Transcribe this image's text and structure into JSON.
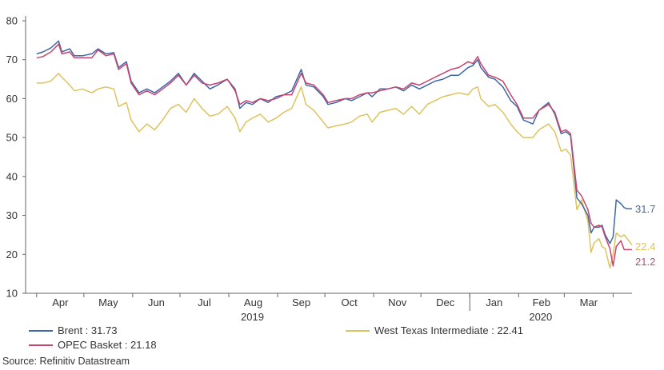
{
  "chart_data": {
    "type": "line",
    "title": "",
    "xlabel": "",
    "ylabel": "",
    "ylim": [
      10,
      80
    ],
    "yticks": [
      10,
      20,
      30,
      40,
      50,
      60,
      70,
      80
    ],
    "grid": false,
    "month_labels": [
      "Apr",
      "May",
      "Jun",
      "Jul",
      "Aug",
      "Sep",
      "Oct",
      "Nov",
      "Dec",
      "Jan",
      "Feb",
      "Mar"
    ],
    "year_labels": [
      "2019",
      "2020"
    ],
    "source": "Source: Refinitiv Datastream",
    "series": [
      {
        "name": "Brent",
        "legend": "Brent : 31.73",
        "end_label": "31.7",
        "color": "#3f68a6",
        "points": [
          [
            "2019-04-01",
            71.5
          ],
          [
            "2019-04-05",
            72.0
          ],
          [
            "2019-04-10",
            73.0
          ],
          [
            "2019-04-15",
            74.8
          ],
          [
            "2019-04-17",
            72.0
          ],
          [
            "2019-04-22",
            72.8
          ],
          [
            "2019-04-25",
            71.0
          ],
          [
            "2019-04-30",
            71.0
          ],
          [
            "2019-05-06",
            71.5
          ],
          [
            "2019-05-10",
            72.8
          ],
          [
            "2019-05-15",
            71.5
          ],
          [
            "2019-05-20",
            71.8
          ],
          [
            "2019-05-23",
            68.0
          ],
          [
            "2019-05-28",
            69.5
          ],
          [
            "2019-05-31",
            64.5
          ],
          [
            "2019-06-05",
            61.5
          ],
          [
            "2019-06-10",
            62.5
          ],
          [
            "2019-06-15",
            61.5
          ],
          [
            "2019-06-20",
            63.0
          ],
          [
            "2019-06-25",
            64.5
          ],
          [
            "2019-06-30",
            66.5
          ],
          [
            "2019-07-05",
            63.5
          ],
          [
            "2019-07-10",
            66.5
          ],
          [
            "2019-07-15",
            64.5
          ],
          [
            "2019-07-20",
            62.5
          ],
          [
            "2019-07-25",
            63.5
          ],
          [
            "2019-07-31",
            65.0
          ],
          [
            "2019-08-05",
            62.5
          ],
          [
            "2019-08-08",
            57.5
          ],
          [
            "2019-08-12",
            59.0
          ],
          [
            "2019-08-16",
            58.5
          ],
          [
            "2019-08-21",
            60.0
          ],
          [
            "2019-08-26",
            59.0
          ],
          [
            "2019-08-31",
            60.5
          ],
          [
            "2019-09-05",
            61.0
          ],
          [
            "2019-09-10",
            62.0
          ],
          [
            "2019-09-16",
            67.5
          ],
          [
            "2019-09-19",
            63.5
          ],
          [
            "2019-09-24",
            63.0
          ],
          [
            "2019-09-30",
            60.5
          ],
          [
            "2019-10-03",
            58.5
          ],
          [
            "2019-10-08",
            59.0
          ],
          [
            "2019-10-14",
            60.0
          ],
          [
            "2019-10-18",
            59.5
          ],
          [
            "2019-10-23",
            60.5
          ],
          [
            "2019-10-28",
            61.5
          ],
          [
            "2019-10-31",
            60.5
          ],
          [
            "2019-11-05",
            62.5
          ],
          [
            "2019-11-10",
            62.5
          ],
          [
            "2019-11-15",
            63.0
          ],
          [
            "2019-11-20",
            62.0
          ],
          [
            "2019-11-25",
            63.5
          ],
          [
            "2019-11-30",
            62.5
          ],
          [
            "2019-12-05",
            63.5
          ],
          [
            "2019-12-10",
            64.5
          ],
          [
            "2019-12-15",
            65.0
          ],
          [
            "2019-12-20",
            66.0
          ],
          [
            "2019-12-25",
            66.0
          ],
          [
            "2019-12-31",
            68.0
          ],
          [
            "2020-01-03",
            68.5
          ],
          [
            "2020-01-06",
            70.0
          ],
          [
            "2020-01-08",
            68.0
          ],
          [
            "2020-01-13",
            65.5
          ],
          [
            "2020-01-17",
            65.0
          ],
          [
            "2020-01-22",
            63.0
          ],
          [
            "2020-01-27",
            59.5
          ],
          [
            "2020-01-31",
            58.0
          ],
          [
            "2020-02-04",
            54.5
          ],
          [
            "2020-02-10",
            53.5
          ],
          [
            "2020-02-14",
            57.0
          ],
          [
            "2020-02-20",
            59.0
          ],
          [
            "2020-02-24",
            56.0
          ],
          [
            "2020-02-28",
            51.0
          ],
          [
            "2020-03-02",
            51.5
          ],
          [
            "2020-03-05",
            50.5
          ],
          [
            "2020-03-09",
            34.5
          ],
          [
            "2020-03-12",
            33.0
          ],
          [
            "2020-03-16",
            30.0
          ],
          [
            "2020-03-18",
            25.5
          ],
          [
            "2020-03-20",
            27.0
          ],
          [
            "2020-03-23",
            27.0
          ],
          [
            "2020-03-25",
            27.5
          ],
          [
            "2020-03-27",
            25.0
          ],
          [
            "2020-03-30",
            22.8
          ],
          [
            "2020-04-01",
            24.5
          ],
          [
            "2020-04-03",
            34.0
          ],
          [
            "2020-04-06",
            33.0
          ],
          [
            "2020-04-08",
            32.0
          ],
          [
            "2020-04-10",
            31.7
          ],
          [
            "2020-04-13",
            31.7
          ]
        ]
      },
      {
        "name": "OPEC Basket",
        "legend": "OPEC Basket : 21.18",
        "end_label": "21.2",
        "color": "#c9456e",
        "points": [
          [
            "2019-04-01",
            70.5
          ],
          [
            "2019-04-05",
            70.8
          ],
          [
            "2019-04-10",
            72.0
          ],
          [
            "2019-04-15",
            74.0
          ],
          [
            "2019-04-17",
            71.5
          ],
          [
            "2019-04-22",
            72.0
          ],
          [
            "2019-04-25",
            70.5
          ],
          [
            "2019-04-30",
            70.5
          ],
          [
            "2019-05-06",
            70.5
          ],
          [
            "2019-05-10",
            72.5
          ],
          [
            "2019-05-15",
            71.0
          ],
          [
            "2019-05-20",
            71.5
          ],
          [
            "2019-05-23",
            67.5
          ],
          [
            "2019-05-28",
            69.0
          ],
          [
            "2019-05-31",
            64.0
          ],
          [
            "2019-06-05",
            61.0
          ],
          [
            "2019-06-10",
            62.0
          ],
          [
            "2019-06-15",
            61.0
          ],
          [
            "2019-06-20",
            62.5
          ],
          [
            "2019-06-25",
            64.0
          ],
          [
            "2019-06-30",
            66.0
          ],
          [
            "2019-07-05",
            63.5
          ],
          [
            "2019-07-10",
            66.0
          ],
          [
            "2019-07-15",
            64.0
          ],
          [
            "2019-07-20",
            63.5
          ],
          [
            "2019-07-25",
            64.0
          ],
          [
            "2019-07-31",
            65.0
          ],
          [
            "2019-08-05",
            62.0
          ],
          [
            "2019-08-08",
            58.5
          ],
          [
            "2019-08-12",
            59.5
          ],
          [
            "2019-08-16",
            59.0
          ],
          [
            "2019-08-21",
            60.0
          ],
          [
            "2019-08-26",
            59.5
          ],
          [
            "2019-08-31",
            60.0
          ],
          [
            "2019-09-05",
            61.0
          ],
          [
            "2019-09-10",
            61.0
          ],
          [
            "2019-09-16",
            66.5
          ],
          [
            "2019-09-19",
            64.0
          ],
          [
            "2019-09-24",
            63.5
          ],
          [
            "2019-09-30",
            61.0
          ],
          [
            "2019-10-03",
            59.0
          ],
          [
            "2019-10-08",
            59.5
          ],
          [
            "2019-10-14",
            60.0
          ],
          [
            "2019-10-18",
            60.0
          ],
          [
            "2019-10-23",
            61.0
          ],
          [
            "2019-10-28",
            61.5
          ],
          [
            "2019-10-31",
            61.5
          ],
          [
            "2019-11-05",
            62.0
          ],
          [
            "2019-11-10",
            62.5
          ],
          [
            "2019-11-15",
            63.0
          ],
          [
            "2019-11-20",
            62.5
          ],
          [
            "2019-11-25",
            64.0
          ],
          [
            "2019-11-30",
            63.5
          ],
          [
            "2019-12-05",
            64.5
          ],
          [
            "2019-12-10",
            65.5
          ],
          [
            "2019-12-15",
            66.5
          ],
          [
            "2019-12-20",
            67.5
          ],
          [
            "2019-12-25",
            68.0
          ],
          [
            "2019-12-31",
            69.5
          ],
          [
            "2020-01-03",
            69.0
          ],
          [
            "2020-01-06",
            70.8
          ],
          [
            "2020-01-08",
            69.0
          ],
          [
            "2020-01-13",
            66.0
          ],
          [
            "2020-01-17",
            65.5
          ],
          [
            "2020-01-22",
            64.5
          ],
          [
            "2020-01-27",
            61.0
          ],
          [
            "2020-01-31",
            58.5
          ],
          [
            "2020-02-04",
            55.0
          ],
          [
            "2020-02-10",
            55.0
          ],
          [
            "2020-02-14",
            57.0
          ],
          [
            "2020-02-20",
            58.5
          ],
          [
            "2020-02-24",
            56.5
          ],
          [
            "2020-02-28",
            51.5
          ],
          [
            "2020-03-02",
            52.0
          ],
          [
            "2020-03-05",
            51.0
          ],
          [
            "2020-03-09",
            36.5
          ],
          [
            "2020-03-12",
            35.0
          ],
          [
            "2020-03-16",
            31.5
          ],
          [
            "2020-03-18",
            28.0
          ],
          [
            "2020-03-20",
            27.0
          ],
          [
            "2020-03-23",
            27.5
          ],
          [
            "2020-03-25",
            27.0
          ],
          [
            "2020-03-27",
            24.5
          ],
          [
            "2020-03-30",
            21.5
          ],
          [
            "2020-04-01",
            17.0
          ],
          [
            "2020-04-03",
            22.0
          ],
          [
            "2020-04-06",
            23.5
          ],
          [
            "2020-04-08",
            21.2
          ],
          [
            "2020-04-10",
            21.2
          ],
          [
            "2020-04-13",
            21.2
          ]
        ]
      },
      {
        "name": "West Texas Intermediate",
        "legend": "West Texas Intermediate : 22.41",
        "end_label": "22.4",
        "color": "#ddc35e",
        "points": [
          [
            "2019-04-01",
            64.0
          ],
          [
            "2019-04-05",
            64.0
          ],
          [
            "2019-04-10",
            64.5
          ],
          [
            "2019-04-15",
            66.5
          ],
          [
            "2019-04-17",
            65.5
          ],
          [
            "2019-04-22",
            63.5
          ],
          [
            "2019-04-25",
            62.0
          ],
          [
            "2019-04-30",
            62.5
          ],
          [
            "2019-05-06",
            61.5
          ],
          [
            "2019-05-10",
            62.5
          ],
          [
            "2019-05-15",
            63.0
          ],
          [
            "2019-05-20",
            62.5
          ],
          [
            "2019-05-23",
            58.0
          ],
          [
            "2019-05-28",
            59.0
          ],
          [
            "2019-05-31",
            54.5
          ],
          [
            "2019-06-05",
            51.5
          ],
          [
            "2019-06-10",
            53.5
          ],
          [
            "2019-06-15",
            52.0
          ],
          [
            "2019-06-20",
            54.5
          ],
          [
            "2019-06-25",
            57.5
          ],
          [
            "2019-06-30",
            58.5
          ],
          [
            "2019-07-05",
            56.5
          ],
          [
            "2019-07-10",
            60.0
          ],
          [
            "2019-07-15",
            57.5
          ],
          [
            "2019-07-20",
            55.5
          ],
          [
            "2019-07-25",
            56.0
          ],
          [
            "2019-07-31",
            58.0
          ],
          [
            "2019-08-05",
            55.0
          ],
          [
            "2019-08-08",
            51.5
          ],
          [
            "2019-08-12",
            54.0
          ],
          [
            "2019-08-16",
            55.0
          ],
          [
            "2019-08-21",
            56.0
          ],
          [
            "2019-08-26",
            54.0
          ],
          [
            "2019-08-31",
            55.0
          ],
          [
            "2019-09-05",
            56.5
          ],
          [
            "2019-09-10",
            57.5
          ],
          [
            "2019-09-16",
            63.0
          ],
          [
            "2019-09-19",
            58.5
          ],
          [
            "2019-09-24",
            57.0
          ],
          [
            "2019-09-30",
            54.0
          ],
          [
            "2019-10-03",
            52.5
          ],
          [
            "2019-10-08",
            53.0
          ],
          [
            "2019-10-14",
            53.5
          ],
          [
            "2019-10-18",
            54.0
          ],
          [
            "2019-10-23",
            55.5
          ],
          [
            "2019-10-28",
            56.0
          ],
          [
            "2019-10-31",
            54.0
          ],
          [
            "2019-11-05",
            56.5
          ],
          [
            "2019-11-10",
            57.0
          ],
          [
            "2019-11-15",
            57.5
          ],
          [
            "2019-11-20",
            56.0
          ],
          [
            "2019-11-25",
            58.0
          ],
          [
            "2019-11-30",
            56.0
          ],
          [
            "2019-12-05",
            58.5
          ],
          [
            "2019-12-10",
            59.5
          ],
          [
            "2019-12-15",
            60.5
          ],
          [
            "2019-12-20",
            61.0
          ],
          [
            "2019-12-25",
            61.5
          ],
          [
            "2019-12-31",
            61.0
          ],
          [
            "2020-01-03",
            62.5
          ],
          [
            "2020-01-06",
            63.0
          ],
          [
            "2020-01-08",
            60.0
          ],
          [
            "2020-01-13",
            58.0
          ],
          [
            "2020-01-17",
            58.5
          ],
          [
            "2020-01-22",
            56.5
          ],
          [
            "2020-01-27",
            53.5
          ],
          [
            "2020-01-31",
            51.5
          ],
          [
            "2020-02-04",
            50.0
          ],
          [
            "2020-02-10",
            50.0
          ],
          [
            "2020-02-14",
            52.0
          ],
          [
            "2020-02-20",
            53.5
          ],
          [
            "2020-02-24",
            51.5
          ],
          [
            "2020-02-28",
            46.5
          ],
          [
            "2020-03-02",
            47.0
          ],
          [
            "2020-03-05",
            45.5
          ],
          [
            "2020-03-09",
            31.5
          ],
          [
            "2020-03-12",
            34.0
          ],
          [
            "2020-03-16",
            28.5
          ],
          [
            "2020-03-18",
            20.5
          ],
          [
            "2020-03-20",
            23.0
          ],
          [
            "2020-03-23",
            24.0
          ],
          [
            "2020-03-25",
            22.0
          ],
          [
            "2020-03-27",
            21.5
          ],
          [
            "2020-03-30",
            16.5
          ],
          [
            "2020-04-01",
            20.0
          ],
          [
            "2020-04-03",
            25.5
          ],
          [
            "2020-04-06",
            24.5
          ],
          [
            "2020-04-08",
            25.0
          ],
          [
            "2020-04-10",
            24.0
          ],
          [
            "2020-04-13",
            22.4
          ]
        ]
      }
    ]
  }
}
